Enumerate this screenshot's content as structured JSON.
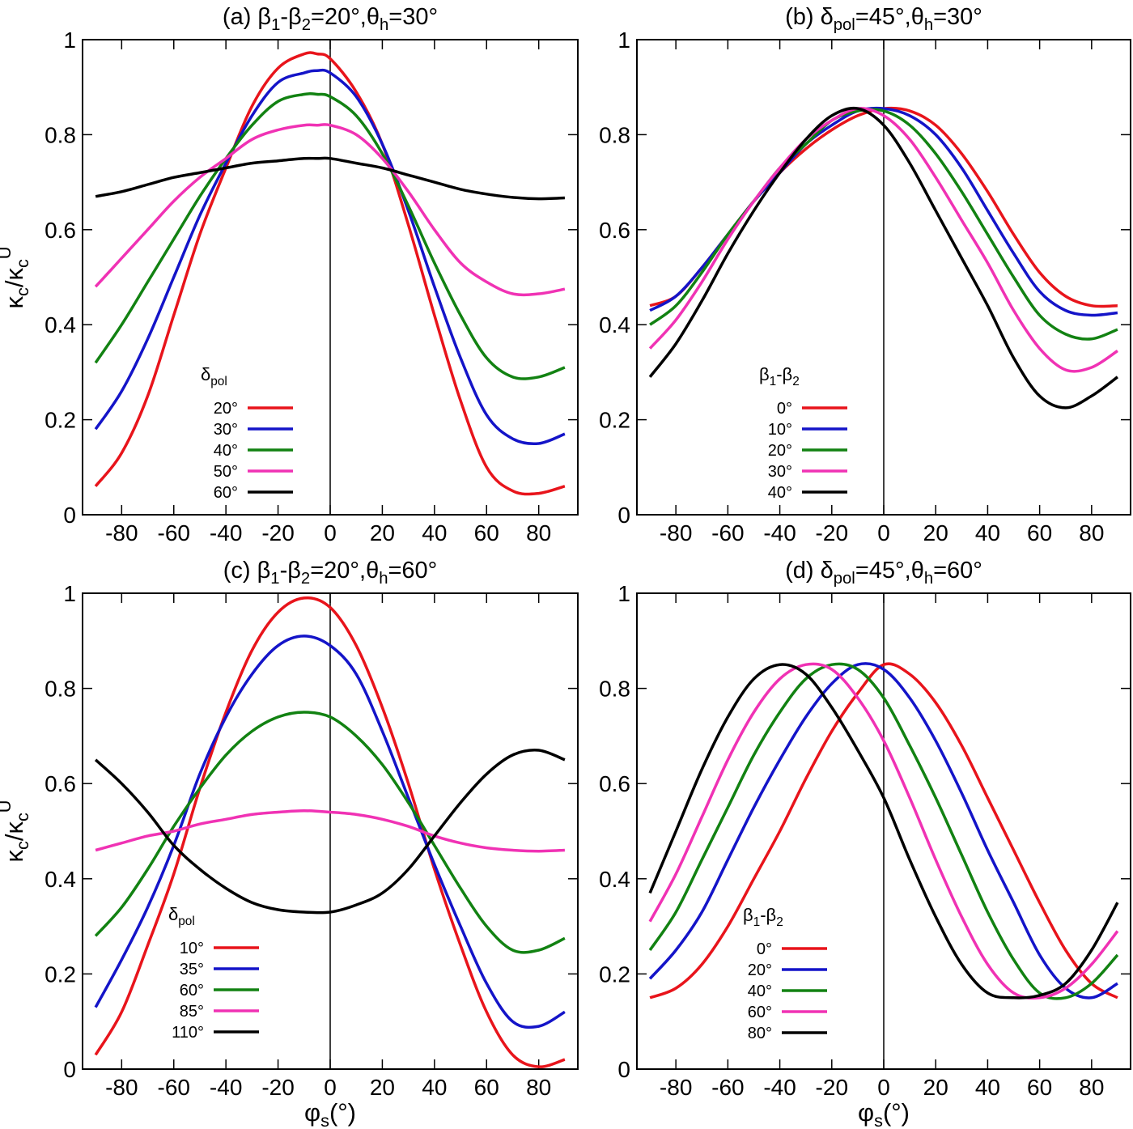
{
  "colors": {
    "red": "#e8141b",
    "blue": "#1414c8",
    "green": "#128212",
    "magenta": "#f032b4",
    "black": "#000000"
  },
  "y_axis_label": {
    "main": "κ",
    "sub1": "c",
    "slash": "/κ",
    "sub2": "c",
    "sup": "U"
  },
  "x_axis_label": {
    "main": "φ",
    "sub": "s",
    "rest": "(°)"
  },
  "chart_data": [
    {
      "type": "line",
      "title": {
        "prefix": "(a) ",
        "s1": "β",
        "s1sub": "1",
        "dash": "-",
        "s2": "β",
        "s2sub": "2",
        "eq1": "=20°,",
        "s3": "θ",
        "s3sub": "h",
        "eq2": "=30°"
      },
      "xlim": [
        -95,
        95
      ],
      "ylim": [
        0,
        1
      ],
      "x_ticks": [
        "-80",
        "-60",
        "-40",
        "-20",
        "0",
        "20",
        "40",
        "60",
        "80"
      ],
      "y_ticks": [
        "0",
        "0.2",
        "0.4",
        "0.6",
        "0.8",
        "1"
      ],
      "legend": {
        "title": "δ",
        "title_sub": "pol",
        "labels": [
          "20°",
          "30°",
          "40°",
          "50°",
          "60°"
        ]
      },
      "x": [
        -90,
        -80,
        -70,
        -60,
        -50,
        -40,
        -30,
        -20,
        -10,
        -5,
        0,
        10,
        20,
        30,
        40,
        50,
        60,
        70,
        80,
        90
      ],
      "series": [
        {
          "name": "20°",
          "color": "red",
          "values": [
            0.06,
            0.13,
            0.25,
            0.42,
            0.59,
            0.73,
            0.86,
            0.94,
            0.97,
            0.97,
            0.96,
            0.89,
            0.78,
            0.61,
            0.42,
            0.24,
            0.1,
            0.05,
            0.045,
            0.06
          ]
        },
        {
          "name": "30°",
          "color": "blue",
          "values": [
            0.18,
            0.26,
            0.37,
            0.5,
            0.63,
            0.74,
            0.84,
            0.91,
            0.93,
            0.935,
            0.93,
            0.88,
            0.78,
            0.64,
            0.48,
            0.33,
            0.21,
            0.16,
            0.15,
            0.17
          ]
        },
        {
          "name": "40°",
          "color": "green",
          "values": [
            0.32,
            0.4,
            0.49,
            0.58,
            0.67,
            0.75,
            0.82,
            0.87,
            0.885,
            0.885,
            0.88,
            0.84,
            0.76,
            0.65,
            0.53,
            0.42,
            0.33,
            0.29,
            0.29,
            0.31
          ]
        },
        {
          "name": "50°",
          "color": "magenta",
          "values": [
            0.48,
            0.54,
            0.6,
            0.66,
            0.71,
            0.75,
            0.79,
            0.81,
            0.82,
            0.82,
            0.82,
            0.8,
            0.75,
            0.68,
            0.6,
            0.53,
            0.49,
            0.465,
            0.465,
            0.475
          ]
        },
        {
          "name": "60°",
          "color": "black",
          "values": [
            0.67,
            0.68,
            0.695,
            0.71,
            0.72,
            0.73,
            0.74,
            0.745,
            0.75,
            0.75,
            0.75,
            0.74,
            0.73,
            0.715,
            0.7,
            0.685,
            0.675,
            0.668,
            0.665,
            0.667
          ]
        }
      ]
    },
    {
      "type": "line",
      "title": {
        "prefix": "(b)  ",
        "s1": "δ",
        "s1sub": "pol",
        "eq1": "=45°,",
        "s3": "θ",
        "s3sub": "h",
        "eq2": "=30°"
      },
      "xlim": [
        -95,
        95
      ],
      "ylim": [
        0,
        1
      ],
      "x_ticks": [
        "-80",
        "-60",
        "-40",
        "-20",
        "0",
        "20",
        "40",
        "60",
        "80"
      ],
      "y_ticks": [
        "0",
        "0.2",
        "0.4",
        "0.6",
        "0.8",
        "1"
      ],
      "legend": {
        "title": "β",
        "title_sub": "1",
        "title_dash": "-",
        "title2": "β",
        "title2_sub": "2",
        "labels": [
          "0°",
          "10°",
          "20°",
          "30°",
          "40°"
        ]
      },
      "x": [
        -90,
        -80,
        -70,
        -60,
        -50,
        -40,
        -30,
        -20,
        -10,
        0,
        10,
        20,
        30,
        40,
        50,
        60,
        70,
        80,
        90
      ],
      "series": [
        {
          "name": "0°",
          "color": "red",
          "values": [
            0.44,
            0.46,
            0.52,
            0.59,
            0.66,
            0.72,
            0.77,
            0.81,
            0.84,
            0.855,
            0.85,
            0.82,
            0.76,
            0.68,
            0.59,
            0.51,
            0.46,
            0.44,
            0.44
          ]
        },
        {
          "name": "10°",
          "color": "blue",
          "values": [
            0.43,
            0.46,
            0.52,
            0.59,
            0.66,
            0.72,
            0.78,
            0.82,
            0.85,
            0.855,
            0.84,
            0.8,
            0.73,
            0.64,
            0.55,
            0.47,
            0.43,
            0.42,
            0.425
          ]
        },
        {
          "name": "20°",
          "color": "green",
          "values": [
            0.4,
            0.44,
            0.51,
            0.59,
            0.66,
            0.73,
            0.78,
            0.83,
            0.85,
            0.85,
            0.82,
            0.76,
            0.68,
            0.59,
            0.5,
            0.42,
            0.38,
            0.37,
            0.39
          ]
        },
        {
          "name": "30°",
          "color": "magenta",
          "values": [
            0.35,
            0.41,
            0.49,
            0.58,
            0.66,
            0.73,
            0.79,
            0.83,
            0.855,
            0.84,
            0.79,
            0.71,
            0.62,
            0.53,
            0.43,
            0.35,
            0.305,
            0.31,
            0.345
          ]
        },
        {
          "name": "40°",
          "color": "black",
          "values": [
            0.29,
            0.36,
            0.45,
            0.55,
            0.64,
            0.72,
            0.79,
            0.84,
            0.855,
            0.82,
            0.74,
            0.64,
            0.54,
            0.44,
            0.33,
            0.25,
            0.225,
            0.25,
            0.29
          ]
        }
      ]
    },
    {
      "type": "line",
      "title": {
        "prefix": "(c) ",
        "s1": "β",
        "s1sub": "1",
        "dash": "-",
        "s2": "β",
        "s2sub": "2",
        "eq1": "=20°,",
        "s3": "θ",
        "s3sub": "h",
        "eq2": "=60°"
      },
      "xlim": [
        -95,
        95
      ],
      "ylim": [
        0,
        1
      ],
      "x_ticks": [
        "-80",
        "-60",
        "-40",
        "-20",
        "0",
        "20",
        "40",
        "60",
        "80"
      ],
      "y_ticks": [
        "0",
        "0.2",
        "0.4",
        "0.6",
        "0.8",
        "1"
      ],
      "legend": {
        "title": "δ",
        "title_sub": "pol",
        "labels": [
          "10°",
          "35°",
          "60°",
          "85°",
          "110°"
        ]
      },
      "x": [
        -90,
        -80,
        -70,
        -60,
        -50,
        -40,
        -30,
        -20,
        -10,
        0,
        10,
        20,
        30,
        40,
        50,
        60,
        70,
        80,
        90
      ],
      "series": [
        {
          "name": "10°",
          "color": "red",
          "values": [
            0.03,
            0.12,
            0.26,
            0.41,
            0.59,
            0.75,
            0.88,
            0.96,
            0.99,
            0.97,
            0.89,
            0.76,
            0.6,
            0.42,
            0.26,
            0.12,
            0.03,
            0.005,
            0.02
          ]
        },
        {
          "name": "35°",
          "color": "blue",
          "values": [
            0.13,
            0.23,
            0.34,
            0.47,
            0.62,
            0.74,
            0.83,
            0.89,
            0.91,
            0.89,
            0.83,
            0.71,
            0.57,
            0.43,
            0.3,
            0.18,
            0.1,
            0.09,
            0.12
          ]
        },
        {
          "name": "60°",
          "color": "green",
          "values": [
            0.28,
            0.34,
            0.42,
            0.51,
            0.59,
            0.66,
            0.71,
            0.74,
            0.75,
            0.74,
            0.7,
            0.64,
            0.56,
            0.47,
            0.38,
            0.3,
            0.25,
            0.25,
            0.275
          ]
        },
        {
          "name": "85°",
          "color": "magenta",
          "values": [
            0.46,
            0.475,
            0.49,
            0.5,
            0.515,
            0.525,
            0.535,
            0.54,
            0.543,
            0.54,
            0.535,
            0.525,
            0.51,
            0.49,
            0.475,
            0.465,
            0.46,
            0.458,
            0.46
          ]
        },
        {
          "name": "110°",
          "color": "black",
          "values": [
            0.65,
            0.6,
            0.54,
            0.47,
            0.42,
            0.38,
            0.35,
            0.335,
            0.33,
            0.33,
            0.345,
            0.37,
            0.42,
            0.49,
            0.56,
            0.62,
            0.66,
            0.67,
            0.65
          ]
        }
      ]
    },
    {
      "type": "line",
      "title": {
        "prefix": "(d)  ",
        "s1": "δ",
        "s1sub": "pol",
        "eq1": "=45°,",
        "s3": "θ",
        "s3sub": "h",
        "eq2": "=60°"
      },
      "xlim": [
        -95,
        95
      ],
      "ylim": [
        0,
        1
      ],
      "x_ticks": [
        "-80",
        "-60",
        "-40",
        "-20",
        "0",
        "20",
        "40",
        "60",
        "80"
      ],
      "y_ticks": [
        "0",
        "0.2",
        "0.4",
        "0.6",
        "0.8",
        "1"
      ],
      "legend": {
        "title": "β",
        "title_sub": "1",
        "title_dash": "-",
        "title2": "β",
        "title2_sub": "2",
        "labels": [
          "0°",
          "20°",
          "40°",
          "60°",
          "80°"
        ]
      },
      "x": [
        -90,
        -80,
        -70,
        -60,
        -50,
        -40,
        -30,
        -20,
        -10,
        0,
        10,
        20,
        30,
        40,
        50,
        60,
        70,
        80,
        90
      ],
      "series": [
        {
          "name": "0°",
          "color": "red",
          "values": [
            0.15,
            0.17,
            0.22,
            0.3,
            0.4,
            0.5,
            0.61,
            0.71,
            0.79,
            0.85,
            0.83,
            0.77,
            0.68,
            0.57,
            0.46,
            0.35,
            0.25,
            0.18,
            0.15
          ]
        },
        {
          "name": "20°",
          "color": "blue",
          "values": [
            0.19,
            0.25,
            0.33,
            0.44,
            0.55,
            0.65,
            0.74,
            0.81,
            0.85,
            0.84,
            0.78,
            0.69,
            0.58,
            0.46,
            0.35,
            0.24,
            0.17,
            0.15,
            0.18
          ]
        },
        {
          "name": "40°",
          "color": "green",
          "values": [
            0.25,
            0.33,
            0.44,
            0.55,
            0.66,
            0.75,
            0.82,
            0.85,
            0.84,
            0.78,
            0.68,
            0.57,
            0.45,
            0.33,
            0.23,
            0.16,
            0.15,
            0.18,
            0.24
          ]
        },
        {
          "name": "60°",
          "color": "magenta",
          "values": [
            0.31,
            0.41,
            0.53,
            0.65,
            0.75,
            0.82,
            0.85,
            0.84,
            0.78,
            0.69,
            0.57,
            0.44,
            0.32,
            0.22,
            0.16,
            0.15,
            0.17,
            0.22,
            0.29
          ]
        },
        {
          "name": "80°",
          "color": "black",
          "values": [
            0.37,
            0.5,
            0.63,
            0.74,
            0.82,
            0.85,
            0.83,
            0.76,
            0.67,
            0.57,
            0.44,
            0.32,
            0.22,
            0.16,
            0.15,
            0.155,
            0.18,
            0.25,
            0.35
          ]
        }
      ]
    }
  ]
}
